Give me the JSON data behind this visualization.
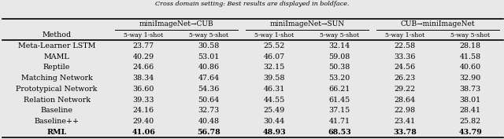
{
  "title": "Cross domain setting: Best results are displayed in boldface.",
  "col_groups": [
    {
      "label": "miniImageNet→CUB"
    },
    {
      "label": "miniImageNet→SUN"
    },
    {
      "label": "CUB→miniImageNet"
    }
  ],
  "sub_cols": [
    "5-way 1-shot",
    "5-way 5-shot",
    "5-way 1-shot",
    "5-way 5-shot",
    "5-way 1-shot",
    "5-way 5-shot"
  ],
  "methods": [
    "Meta-Learner LSTM",
    "MAML",
    "Reptile",
    "Matching Network",
    "Prototypical Network",
    "Relation Network",
    "Baseline",
    "Baseline++",
    "RML"
  ],
  "bold_row": "RML",
  "data": [
    [
      23.77,
      30.58,
      25.52,
      32.14,
      22.58,
      28.18
    ],
    [
      40.29,
      53.01,
      46.07,
      59.08,
      33.36,
      41.58
    ],
    [
      24.66,
      40.86,
      32.15,
      50.38,
      24.56,
      40.6
    ],
    [
      38.34,
      47.64,
      39.58,
      53.2,
      26.23,
      32.9
    ],
    [
      36.6,
      54.36,
      46.31,
      66.21,
      29.22,
      38.73
    ],
    [
      39.33,
      50.64,
      44.55,
      61.45,
      28.64,
      38.01
    ],
    [
      24.16,
      32.73,
      25.49,
      37.15,
      22.98,
      28.41
    ],
    [
      29.4,
      40.48,
      30.44,
      41.71,
      23.41,
      25.82
    ],
    [
      41.06,
      56.78,
      48.93,
      68.53,
      33.78,
      43.79
    ]
  ],
  "fig_width": 6.4,
  "fig_height": 1.77,
  "title_fontsize": 5.8,
  "header_fontsize": 6.8,
  "data_fontsize": 6.8,
  "bg_color": "#e8e8e8"
}
